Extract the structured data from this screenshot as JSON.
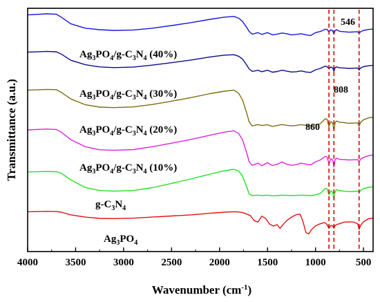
{
  "chart_data": {
    "type": "line",
    "xlabel": "Wavenumber (cm",
    "xlabel_sup": "-1",
    "xlabel_end": ")",
    "ylabel": "Transmittance (a.u.)",
    "xlim": [
      4000,
      400
    ],
    "x_reversed": true,
    "grid": false,
    "y_ticks_labeled": false,
    "xticks": [
      4000,
      3500,
      3000,
      2500,
      2000,
      1500,
      1000,
      500
    ],
    "xtick_labels": [
      "4000",
      "3500",
      "3000",
      "2500",
      "2000",
      "1500",
      "1000",
      "500"
    ],
    "markers": [
      {
        "x": 860,
        "label": "860",
        "color": "#e00000"
      },
      {
        "x": 808,
        "label": "808",
        "color": "#e00000"
      },
      {
        "x": 546,
        "label": "546",
        "color": "#e00000"
      }
    ],
    "series": [
      {
        "label_parts": [
          [
            "Ag",
            ""
          ],
          [
            "3",
            "sub"
          ],
          [
            "PO",
            ""
          ],
          [
            "4",
            "sub"
          ],
          [
            "/g-C",
            ""
          ],
          [
            "3",
            "sub"
          ],
          [
            "N",
            ""
          ],
          [
            "4",
            "sub"
          ],
          [
            " (40%)",
            ""
          ]
        ],
        "color": "#1515e0",
        "x": [
          4000,
          3800,
          3700,
          3650,
          3550,
          3400,
          3250,
          3100,
          2900,
          2700,
          2500,
          2300,
          2100,
          1950,
          1850,
          1800,
          1760,
          1720,
          1690,
          1660,
          1640,
          1600,
          1560,
          1500,
          1450,
          1400,
          1350,
          1300,
          1250,
          1200,
          1150,
          1100,
          1050,
          1000,
          950,
          900,
          880,
          860,
          840,
          820,
          808,
          795,
          780,
          750,
          700,
          650,
          600,
          560,
          546,
          530,
          500,
          450,
          400
        ],
        "y": [
          97,
          97.5,
          97.3,
          96,
          93,
          91,
          90.3,
          90,
          90.2,
          91,
          92.2,
          93.5,
          95,
          96,
          96.3,
          95.5,
          94,
          91.5,
          89.5,
          88.3,
          88.5,
          89,
          88.2,
          89,
          88,
          88.3,
          88.8,
          88.5,
          88,
          88.2,
          88.5,
          88,
          87.7,
          89,
          89.5,
          90.5,
          90.5,
          89.3,
          90.3,
          89.8,
          88.3,
          90,
          90.3,
          89.6,
          89.4,
          89.2,
          89.3,
          89.4,
          88.6,
          89.4,
          90,
          90.4,
          90.6
        ]
      },
      {
        "label_parts": [
          [
            "Ag",
            ""
          ],
          [
            "3",
            "sub"
          ],
          [
            "PO",
            ""
          ],
          [
            "4",
            "sub"
          ],
          [
            "/g-C",
            ""
          ],
          [
            "3",
            "sub"
          ],
          [
            "N",
            ""
          ],
          [
            "4",
            "sub"
          ],
          [
            " (30%)",
            ""
          ]
        ],
        "color": "#0a0a8c",
        "x": [
          4000,
          3800,
          3700,
          3650,
          3550,
          3400,
          3250,
          3100,
          2900,
          2700,
          2500,
          2300,
          2100,
          1950,
          1850,
          1800,
          1760,
          1720,
          1690,
          1660,
          1640,
          1600,
          1560,
          1500,
          1450,
          1400,
          1350,
          1300,
          1250,
          1200,
          1150,
          1100,
          1050,
          1000,
          950,
          900,
          880,
          860,
          840,
          820,
          808,
          795,
          780,
          750,
          700,
          650,
          600,
          560,
          546,
          530,
          500,
          450,
          400
        ],
        "y": [
          80.2,
          80.5,
          80.3,
          79.3,
          76.5,
          74.5,
          73.5,
          73.2,
          73.4,
          74.3,
          75.4,
          76.6,
          78,
          78.8,
          79,
          78.3,
          77,
          74.5,
          72.5,
          71.5,
          71.6,
          72,
          71.3,
          72,
          71.1,
          71.4,
          72,
          71.6,
          71.2,
          71.3,
          71.7,
          71.2,
          71,
          72.2,
          72.8,
          73.8,
          73.7,
          72.6,
          73.5,
          73,
          71.5,
          73.2,
          73.5,
          73.1,
          73,
          72.8,
          72.9,
          73,
          72.1,
          73,
          73.6,
          74,
          74.2
        ]
      },
      {
        "label_parts": [
          [
            "Ag",
            ""
          ],
          [
            "3",
            "sub"
          ],
          [
            "PO",
            ""
          ],
          [
            "4",
            "sub"
          ],
          [
            "/g-C",
            ""
          ],
          [
            "3",
            "sub"
          ],
          [
            "N",
            ""
          ],
          [
            "4",
            "sub"
          ],
          [
            " (20%)",
            ""
          ]
        ],
        "color": "#7a6e10",
        "x": [
          4000,
          3800,
          3700,
          3650,
          3550,
          3400,
          3250,
          3100,
          2900,
          2700,
          2500,
          2300,
          2100,
          1950,
          1850,
          1800,
          1760,
          1720,
          1690,
          1660,
          1640,
          1600,
          1560,
          1500,
          1450,
          1400,
          1350,
          1300,
          1250,
          1200,
          1150,
          1100,
          1050,
          1000,
          950,
          900,
          880,
          860,
          840,
          820,
          808,
          795,
          780,
          750,
          700,
          650,
          600,
          560,
          546,
          530,
          500,
          450,
          400
        ],
        "y": [
          63,
          63.3,
          63.2,
          62,
          59,
          56.4,
          55.3,
          55.1,
          55.4,
          56.5,
          58,
          59.6,
          61.4,
          62.5,
          63,
          61.5,
          58.5,
          53,
          48.5,
          46.8,
          47,
          47.4,
          47,
          47.3,
          46.6,
          47,
          47.4,
          47.1,
          46.8,
          47,
          47.4,
          47,
          46.8,
          47.3,
          47.8,
          50,
          49.9,
          46.5,
          48.8,
          48,
          44.7,
          48.4,
          49,
          48.5,
          48.3,
          48,
          48.1,
          48.2,
          46.6,
          48.4,
          49.6,
          50.4,
          50.8
        ]
      },
      {
        "label_parts": [
          [
            "Ag",
            ""
          ],
          [
            "3",
            "sub"
          ],
          [
            "PO",
            ""
          ],
          [
            "4",
            "sub"
          ],
          [
            "/g-C",
            ""
          ],
          [
            "3",
            "sub"
          ],
          [
            "N",
            ""
          ],
          [
            "4",
            "sub"
          ],
          [
            " (10%)",
            ""
          ]
        ],
        "color": "#e020e0",
        "x": [
          4000,
          3800,
          3700,
          3650,
          3550,
          3400,
          3250,
          3100,
          2900,
          2700,
          2500,
          2300,
          2100,
          1950,
          1850,
          1800,
          1760,
          1720,
          1690,
          1660,
          1640,
          1600,
          1560,
          1500,
          1450,
          1400,
          1350,
          1300,
          1250,
          1200,
          1150,
          1100,
          1050,
          1000,
          950,
          900,
          880,
          860,
          840,
          820,
          808,
          795,
          780,
          750,
          700,
          650,
          600,
          560,
          546,
          530,
          500,
          450,
          400
        ],
        "y": [
          45,
          45.4,
          45.2,
          44,
          40.6,
          37.4,
          36,
          35.8,
          36.1,
          37.4,
          39,
          40.7,
          42.6,
          44,
          44.6,
          43.3,
          40.5,
          35,
          30.5,
          29,
          29.3,
          30,
          28.8,
          30.2,
          28.9,
          29.5,
          30.5,
          29.5,
          29,
          29.3,
          30,
          29.5,
          29.2,
          30.6,
          31.4,
          33,
          32.8,
          29.8,
          32,
          31.3,
          28.2,
          31.6,
          32.2,
          31.7,
          31.6,
          31.4,
          31.5,
          31.6,
          30.4,
          31.8,
          32.6,
          33.3,
          33.7
        ]
      },
      {
        "label_parts": [
          [
            "g-C",
            ""
          ],
          [
            "3",
            "sub"
          ],
          [
            "N",
            ""
          ],
          [
            "4",
            "sub"
          ]
        ],
        "color": "#22e022",
        "x": [
          4000,
          3800,
          3700,
          3650,
          3550,
          3400,
          3250,
          3100,
          2900,
          2700,
          2500,
          2300,
          2100,
          1950,
          1850,
          1800,
          1760,
          1720,
          1690,
          1660,
          1640,
          1600,
          1560,
          1500,
          1450,
          1400,
          1350,
          1300,
          1250,
          1200,
          1150,
          1100,
          1050,
          1000,
          950,
          900,
          880,
          860,
          840,
          820,
          808,
          795,
          780,
          750,
          700,
          650,
          600,
          560,
          546,
          530,
          500,
          450,
          400
        ],
        "y": [
          26,
          26.2,
          26.1,
          25.4,
          22.4,
          19,
          17.6,
          17.3,
          17.6,
          18.9,
          20.8,
          22.8,
          25,
          26.5,
          27.2,
          26.4,
          24,
          19.5,
          16,
          15.3,
          15.4,
          15.5,
          15.3,
          15.5,
          15.2,
          15.3,
          15.5,
          15.4,
          15.3,
          15.4,
          15.5,
          15.4,
          15.3,
          15.6,
          16.3,
          18.5,
          18.4,
          15.6,
          17.5,
          16.8,
          13.6,
          17.2,
          18,
          17.5,
          17.3,
          17.1,
          17.2,
          17.4,
          16.6,
          17.6,
          18.5,
          19,
          19.3
        ]
      },
      {
        "label_parts": [
          [
            "Ag",
            ""
          ],
          [
            "3",
            "sub"
          ],
          [
            "PO",
            ""
          ],
          [
            "4",
            "sub"
          ]
        ],
        "color": "#e01010",
        "x": [
          4000,
          3800,
          3700,
          3650,
          3550,
          3400,
          3250,
          3100,
          2900,
          2700,
          2500,
          2300,
          2100,
          1950,
          1850,
          1800,
          1760,
          1720,
          1680,
          1640,
          1600,
          1560,
          1520,
          1480,
          1440,
          1400,
          1370,
          1330,
          1300,
          1250,
          1200,
          1160,
          1130,
          1100,
          1070,
          1040,
          1000,
          960,
          920,
          900,
          880,
          860,
          840,
          820,
          808,
          795,
          780,
          750,
          700,
          650,
          600,
          560,
          546,
          530,
          500,
          450,
          400
        ],
        "y": [
          8,
          8.2,
          8.1,
          7.8,
          6.6,
          5.6,
          5,
          4.9,
          5.1,
          5.6,
          6.1,
          6.6,
          7.3,
          7.8,
          8,
          7.9,
          7.6,
          7,
          6.3,
          4,
          3.3,
          6,
          5,
          2.5,
          1.5,
          2.2,
          0.5,
          2.6,
          4,
          5.6,
          6.7,
          6.9,
          3.5,
          -1.4,
          -2,
          0,
          1.6,
          2.4,
          3,
          3,
          2.2,
          0.5,
          1.8,
          1.6,
          0.5,
          1.8,
          2.2,
          2.6,
          3.3,
          3.4,
          3.3,
          2.5,
          0,
          1.8,
          3.5,
          4.8,
          5.2
        ]
      }
    ]
  }
}
